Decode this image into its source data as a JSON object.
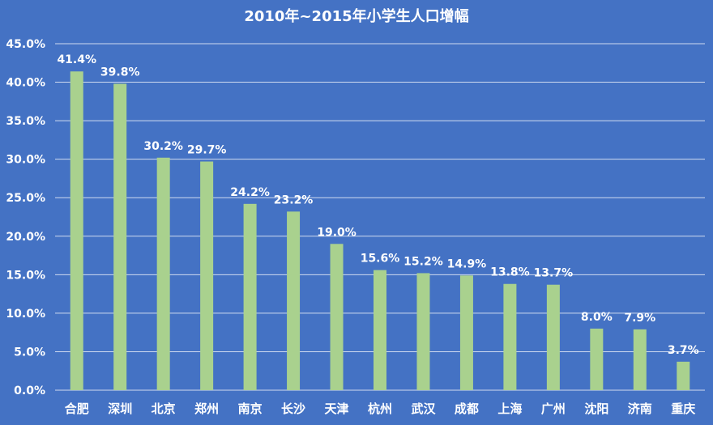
{
  "chart_data": {
    "type": "bar",
    "title": "2010年~2015年小学生人口增幅",
    "xlabel": "",
    "ylabel": "",
    "categories": [
      "合肥",
      "深圳",
      "北京",
      "郑州",
      "南京",
      "长沙",
      "天津",
      "杭州",
      "武汉",
      "成都",
      "上海",
      "广州",
      "沈阳",
      "济南",
      "重庆"
    ],
    "values": [
      41.4,
      39.8,
      30.2,
      29.7,
      24.2,
      23.2,
      19.0,
      15.6,
      15.2,
      14.9,
      13.8,
      13.7,
      8.0,
      7.9,
      3.7
    ],
    "data_labels": [
      "41.4%",
      "39.8%",
      "30.2%",
      "29.7%",
      "24.2%",
      "23.2%",
      "19.0%",
      "15.6%",
      "15.2%",
      "14.9%",
      "13.8%",
      "13.7%",
      "8.0%",
      "7.9%",
      "3.7%"
    ],
    "ylim": [
      0,
      45
    ],
    "yticks": [
      0,
      5,
      10,
      15,
      20,
      25,
      30,
      35,
      40,
      45
    ],
    "ytick_labels": [
      "0.0%",
      "5.0%",
      "10.0%",
      "15.0%",
      "20.0%",
      "25.0%",
      "30.0%",
      "35.0%",
      "40.0%",
      "45.0%"
    ],
    "grid": true,
    "legend": "none",
    "colors": {
      "background": "#4472c4",
      "bar": "#a9d18e",
      "gridline": "#ffffff",
      "text": "#ffffff"
    }
  }
}
